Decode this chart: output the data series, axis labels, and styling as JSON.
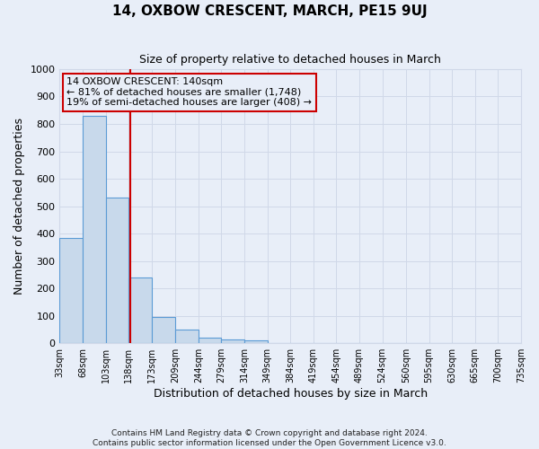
{
  "title": "14, OXBOW CRESCENT, MARCH, PE15 9UJ",
  "subtitle": "Size of property relative to detached houses in March",
  "xlabel": "Distribution of detached houses by size in March",
  "ylabel": "Number of detached properties",
  "footnote1": "Contains HM Land Registry data © Crown copyright and database right 2024.",
  "footnote2": "Contains public sector information licensed under the Open Government Licence v3.0.",
  "bar_edges": [
    33,
    68,
    103,
    138,
    173,
    209,
    244,
    279,
    314,
    349,
    384,
    419,
    454,
    489,
    524,
    560,
    595,
    630,
    665,
    700,
    735
  ],
  "bar_heights": [
    385,
    830,
    530,
    240,
    95,
    50,
    20,
    15,
    10,
    0,
    0,
    0,
    0,
    0,
    0,
    0,
    0,
    0,
    0,
    0
  ],
  "bar_color": "#c8d9eb",
  "bar_edgecolor": "#5b9bd5",
  "vline_x": 140,
  "vline_color": "#cc0000",
  "ann_line1": "14 OXBOW CRESCENT: 140sqm",
  "ann_line2": "← 81% of detached houses are smaller (1,748)",
  "ann_line3": "19% of semi-detached houses are larger (408) →",
  "annotation_box_color": "#cc0000",
  "ylim": [
    0,
    1000
  ],
  "yticks": [
    0,
    100,
    200,
    300,
    400,
    500,
    600,
    700,
    800,
    900,
    1000
  ],
  "grid_color": "#d0d8e8",
  "background_color": "#e8eef8",
  "tick_labels": [
    "33sqm",
    "68sqm",
    "103sqm",
    "138sqm",
    "173sqm",
    "209sqm",
    "244sqm",
    "279sqm",
    "314sqm",
    "349sqm",
    "384sqm",
    "419sqm",
    "454sqm",
    "489sqm",
    "524sqm",
    "560sqm",
    "595sqm",
    "630sqm",
    "665sqm",
    "700sqm",
    "735sqm"
  ]
}
